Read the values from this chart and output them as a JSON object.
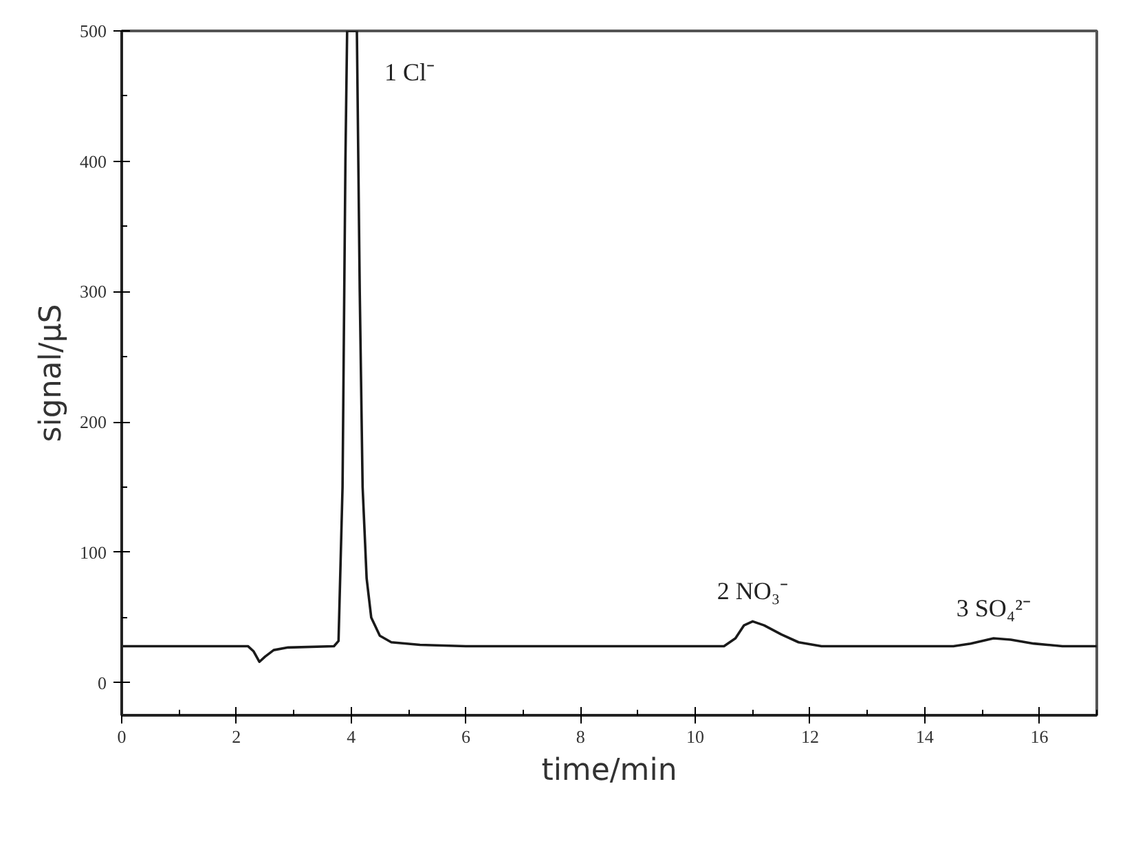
{
  "chart_data": {
    "type": "line",
    "xlabel": "time/min",
    "ylabel": "signal/µS",
    "xlim": [
      0,
      17
    ],
    "ylim": [
      -25,
      500
    ],
    "xticks": [
      0,
      {
        "value": 1,
        "label": null
      },
      2,
      {
        "value": 3,
        "label": null
      },
      4,
      {
        "value": 5,
        "label": null
      },
      6,
      {
        "value": 7,
        "label": null
      },
      8,
      {
        "value": 9,
        "label": null
      },
      10,
      {
        "value": 11,
        "label": null
      },
      12,
      {
        "value": 13,
        "label": null
      },
      14,
      {
        "value": 15,
        "label": null
      },
      16,
      {
        "value": 17,
        "label": null
      }
    ],
    "yticks": [
      0,
      {
        "value": 50,
        "label": null
      },
      100,
      {
        "value": 150,
        "label": null
      },
      200,
      {
        "value": 250,
        "label": null
      },
      300,
      {
        "value": 350,
        "label": null
      },
      400,
      {
        "value": 450,
        "label": null
      },
      500
    ],
    "grid": false,
    "marker": "none",
    "line_style": "solid",
    "series": [
      {
        "color": "#1a1a1a",
        "x": [
          0,
          2.2,
          2.3,
          2.4,
          2.5,
          2.65,
          2.9,
          3.7,
          3.78,
          3.85,
          3.9,
          3.93,
          4.1,
          4.15,
          4.2,
          4.27,
          4.35,
          4.5,
          4.7,
          5.2,
          6,
          10.5,
          10.7,
          10.85,
          11.0,
          11.2,
          11.5,
          11.8,
          12.2,
          14.5,
          14.8,
          15.2,
          15.5,
          15.9,
          16.4,
          17
        ],
        "values": [
          28,
          28,
          24,
          16,
          20,
          25,
          27,
          28,
          32,
          150,
          400,
          500,
          500,
          300,
          150,
          80,
          50,
          36,
          31,
          29,
          28,
          28,
          34,
          44,
          47,
          44,
          37,
          31,
          28,
          28,
          30,
          34,
          33,
          30,
          28,
          28
        ]
      }
    ],
    "annotations": [
      {
        "text": "1 Cl⁻",
        "x": 4.1,
        "y": 500
      },
      {
        "text": "2 NO₃⁻",
        "x": 11.0,
        "y": 47
      },
      {
        "text": "3 SO₄²⁻",
        "x": 15.2,
        "y": 34
      }
    ]
  }
}
